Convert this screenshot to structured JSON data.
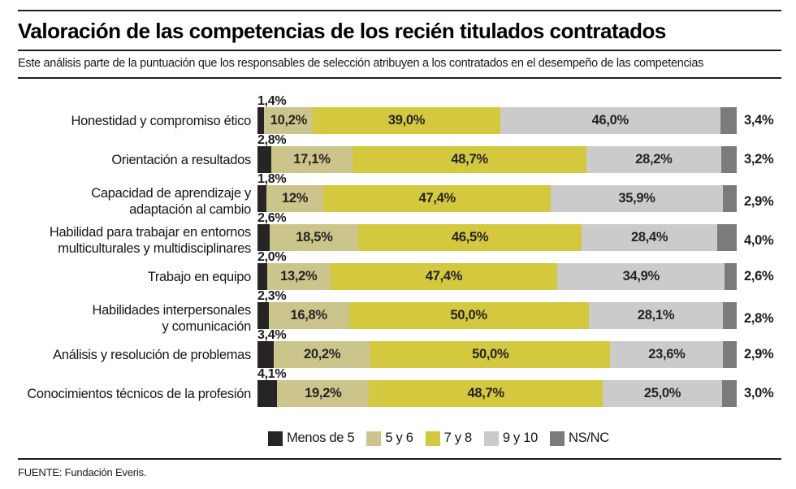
{
  "header": {
    "title": "Valoración de las competencias de los recién titulados contratados",
    "subtitle": "Este análisis parte de la puntuación que los responsables de selección atribuyen a los contratados en el desempeño de las competencias"
  },
  "chart_data": {
    "type": "bar",
    "orientation": "horizontal",
    "stacked": true,
    "unit": "%",
    "xlim": [
      0,
      100
    ],
    "grid": false,
    "legend_position": "bottom",
    "categories": [
      [
        "Honestidad y compromiso ético"
      ],
      [
        "Orientación a resultados"
      ],
      [
        "Capacidad de aprendizaje y",
        "adaptación al cambio"
      ],
      [
        "Habilidad para trabajar en entornos",
        "multiculturales y multidisciplinares"
      ],
      [
        "Trabajo en equipo"
      ],
      [
        "Habilidades interpersonales",
        "y comunicación"
      ],
      [
        "Análisis y resolución de problemas"
      ],
      [
        "Conocimientos técnicos de la profesión"
      ]
    ],
    "series": [
      {
        "name": "Menos de 5",
        "key": "menos-de-5",
        "color": "#272425",
        "label_position": "above-bar",
        "values": [
          1.4,
          2.8,
          1.8,
          2.6,
          2.0,
          2.3,
          3.4,
          4.1
        ],
        "labels": [
          "1,4%",
          "2,8%",
          "1,8%",
          "2,6%",
          "2,0%",
          "2,3%",
          "3,4%",
          "4,1%"
        ]
      },
      {
        "name": "5 y 6",
        "key": "5-y-6",
        "color": "#cbc58c",
        "label_position": "inside",
        "values": [
          10.2,
          17.1,
          12,
          18.5,
          13.2,
          16.8,
          20.2,
          19.2
        ],
        "labels": [
          "10,2%",
          "17,1%",
          "12%",
          "18,5%",
          "13,2%",
          "16,8%",
          "20,2%",
          "19,2%"
        ]
      },
      {
        "name": "7 y 8",
        "key": "7-y-8",
        "color": "#d3c83e",
        "label_position": "inside",
        "values": [
          39.0,
          48.7,
          47.4,
          46.5,
          47.4,
          50.0,
          50.0,
          48.7
        ],
        "labels": [
          "39,0%",
          "48,7%",
          "47,4%",
          "46,5%",
          "47,4%",
          "50,0%",
          "50,0%",
          "48,7%"
        ]
      },
      {
        "name": "9 y 10",
        "key": "9-y-10",
        "color": "#cbcbcb",
        "label_position": "inside",
        "values": [
          46.0,
          28.2,
          35.9,
          28.4,
          34.9,
          28.1,
          23.6,
          25.0
        ],
        "labels": [
          "46,0%",
          "28,2%",
          "35,9%",
          "28,4%",
          "34,9%",
          "28,1%",
          "23,6%",
          "25,0%"
        ]
      },
      {
        "name": "NS/NC",
        "key": "ns-nc",
        "color": "#7b7b7d",
        "label_position": "right-of-bar",
        "values": [
          3.4,
          3.2,
          2.9,
          4.0,
          2.6,
          2.8,
          2.9,
          3.0
        ],
        "labels": [
          "3,4%",
          "3,2%",
          "2,9%",
          "4,0%",
          "2,6%",
          "2,8%",
          "2,9%",
          "3,0%"
        ]
      }
    ]
  },
  "footer": {
    "source": "FUENTE: Fundación Everis."
  }
}
